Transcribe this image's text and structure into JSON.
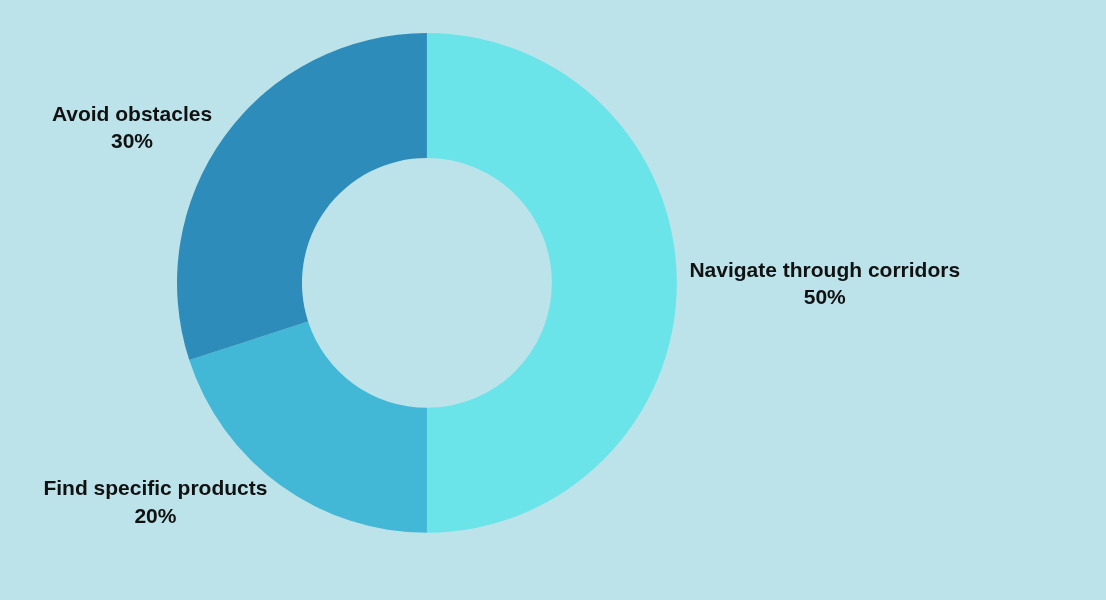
{
  "chart_data": {
    "type": "donut",
    "categories": [
      "Navigate through corridors",
      "Find specific products",
      "Avoid obstacles"
    ],
    "values": [
      50,
      20,
      30
    ],
    "value_labels": [
      "50%",
      "20%",
      "30%"
    ],
    "colors": [
      "#6ae4e8",
      "#42b7d6",
      "#2e8cba"
    ],
    "legend": false
  }
}
